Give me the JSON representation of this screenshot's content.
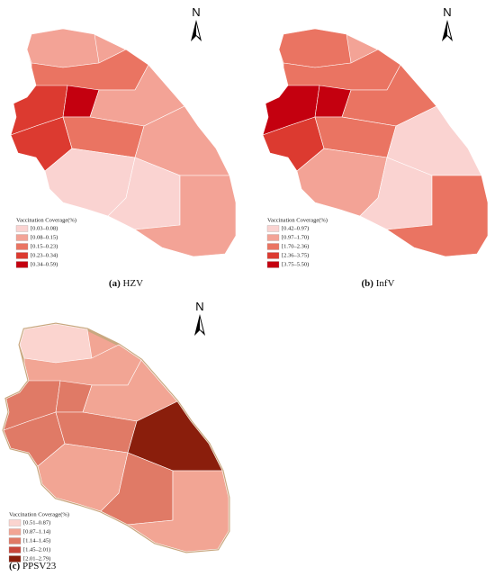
{
  "maps": [
    {
      "north": "N",
      "letter": "(a)",
      "name": "HZV",
      "legend": {
        "title": "Vaccination Coverage(%)",
        "items": [
          {
            "label": "[0.03–0.08)",
            "color": "#fad3d1"
          },
          {
            "label": "[0.08–0.15)",
            "color": "#f3a396"
          },
          {
            "label": "[0.15–0.23)",
            "color": "#ea7462"
          },
          {
            "label": "[0.23–0.34)",
            "color": "#dc3a30"
          },
          {
            "label": "[0.34–0.59)",
            "color": "#c4000f"
          }
        ]
      }
    },
    {
      "north": "N",
      "letter": "(b)",
      "name": "InfV",
      "legend": {
        "title": "Vaccination Coverage(%)",
        "items": [
          {
            "label": "[0.42–0.97)",
            "color": "#fad3d1"
          },
          {
            "label": "[0.97–1.70)",
            "color": "#f3a396"
          },
          {
            "label": "[1.70–2.36)",
            "color": "#ea7462"
          },
          {
            "label": "[2.36–3.75)",
            "color": "#dc3a30"
          },
          {
            "label": "[3.75–5.50)",
            "color": "#c4000f"
          }
        ]
      }
    },
    {
      "north": "N",
      "letter": "(c)",
      "name": "PPSV23",
      "legend": {
        "title": "Vaccination Coverage(%)",
        "items": [
          {
            "label": "[0.51–0.87)",
            "color": "#fbd4cf"
          },
          {
            "label": "[0.87–1.14)",
            "color": "#f2a594"
          },
          {
            "label": "[1.14–1.45)",
            "color": "#e07a66"
          },
          {
            "label": "[1.45–2.01)",
            "color": "#c9473b"
          },
          {
            "label": "[2.01–2.79)",
            "color": "#8a1e0c"
          }
        ]
      }
    }
  ]
}
